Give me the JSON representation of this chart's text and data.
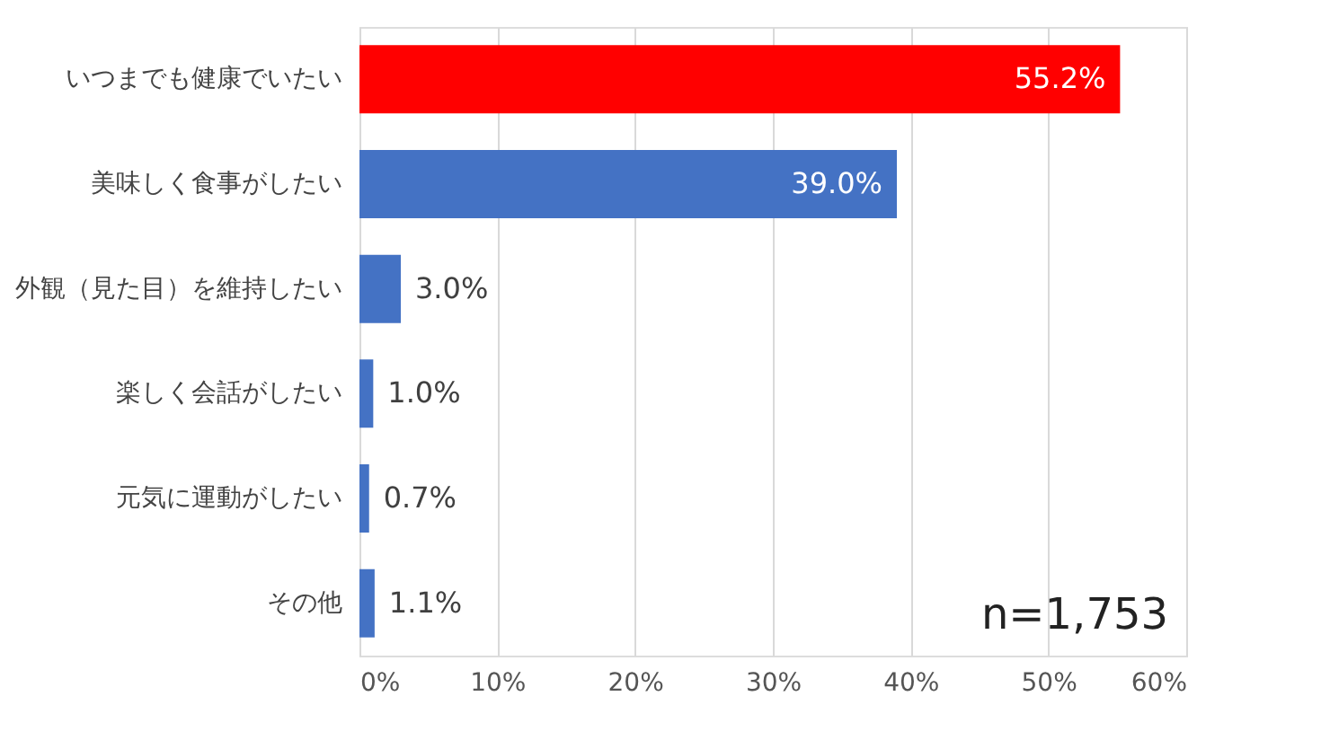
{
  "chart_data": {
    "type": "bar",
    "orientation": "horizontal",
    "categories": [
      "いつまでも健康でいたい",
      "美味しく食事がしたい",
      "外観（見た目）を維持したい",
      "楽しく会話がしたい",
      "元気に運動がしたい",
      "その他"
    ],
    "values": [
      55.2,
      39.0,
      3.0,
      1.0,
      0.7,
      1.1
    ],
    "colors": [
      "#ff0000",
      "#4472c4",
      "#4472c4",
      "#4472c4",
      "#4472c4",
      "#4472c4"
    ],
    "value_labels": [
      "55.2%",
      "39.0%",
      "3.0%",
      "1.0%",
      "0.7%",
      "1.1%"
    ],
    "xlim": [
      0,
      60
    ],
    "xticks": [
      {
        "value": 0,
        "label": "0%"
      },
      {
        "value": 10,
        "label": "10%"
      },
      {
        "value": 20,
        "label": "20%"
      },
      {
        "value": 30,
        "label": "30%"
      },
      {
        "value": 40,
        "label": "40%"
      },
      {
        "value": 50,
        "label": "50%"
      },
      {
        "value": 60,
        "label": "60%"
      }
    ],
    "grid": "x",
    "annotations": [
      "n=1,753"
    ]
  }
}
